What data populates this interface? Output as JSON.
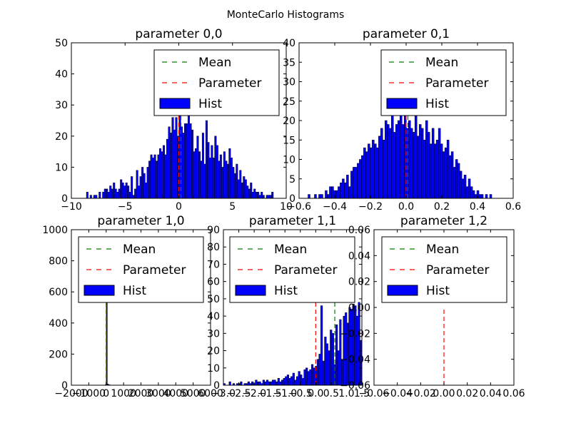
{
  "figure": {
    "suptitle": "MonteCarlo Histograms"
  },
  "legend_labels": [
    "Mean",
    "Parameter",
    "Hist"
  ],
  "colors": {
    "mean": "#008000",
    "parameter": "#ff0000",
    "hist_fill": "#0000ff",
    "hist_edge": "#000000"
  },
  "chart_data": [
    {
      "type": "bar",
      "title": "parameter 0,0",
      "xlim": [
        -10,
        10
      ],
      "ylim": [
        0,
        50
      ],
      "xticks": [
        "−10",
        "−5",
        "0",
        "5",
        "10"
      ],
      "xtick_values": [
        -10,
        -5,
        0,
        5,
        10
      ],
      "yticks": [
        "0",
        "10",
        "20",
        "30",
        "40",
        "50"
      ],
      "ytick_values": [
        0,
        10,
        20,
        30,
        40,
        50
      ],
      "legend_position": "upper right",
      "mean": 0.2,
      "parameter": 0.0,
      "bins_range": [
        -8.6,
        8.8
      ],
      "counts": [
        2,
        0,
        1,
        0,
        1,
        1,
        0,
        2,
        0,
        2,
        3,
        3,
        2,
        4,
        3,
        5,
        3,
        2,
        3,
        6,
        5,
        4,
        5,
        4,
        2,
        7,
        1,
        3,
        9,
        4,
        7,
        10,
        8,
        5,
        10,
        12,
        14,
        13,
        14,
        12,
        14,
        16,
        15,
        17,
        14,
        19,
        23,
        21,
        26,
        22,
        26,
        20,
        27,
        23,
        21,
        24,
        24,
        27,
        24,
        22,
        15,
        16,
        20,
        15,
        12,
        21,
        11,
        25,
        18,
        13,
        17,
        13,
        20,
        17,
        12,
        14,
        10,
        15,
        12,
        11,
        16,
        13,
        10,
        8,
        11,
        6,
        9,
        5,
        7,
        6,
        4,
        3,
        5,
        2,
        3,
        2,
        2,
        1,
        2,
        1,
        0,
        1,
        1,
        1,
        2
      ]
    },
    {
      "type": "bar",
      "title": "parameter 0,1",
      "xlim": [
        -0.6,
        0.6
      ],
      "ylim": [
        0,
        40
      ],
      "xticks": [
        "−0.6",
        "−0.4",
        "−0.2",
        "0.0",
        "0.2",
        "0.4",
        "0.6"
      ],
      "xtick_values": [
        -0.6,
        -0.4,
        -0.2,
        0.0,
        0.2,
        0.4,
        0.6
      ],
      "yticks": [
        "0",
        "5",
        "10",
        "15",
        "20",
        "25",
        "30",
        "35",
        "40"
      ],
      "ytick_values": [
        0,
        5,
        10,
        15,
        20,
        25,
        30,
        35,
        40
      ],
      "legend_position": "upper right",
      "mean": 0.01,
      "parameter": 0.0,
      "bins_range": [
        -0.55,
        0.48
      ],
      "counts": [
        1,
        0,
        0,
        1,
        0,
        1,
        1,
        0,
        2,
        1,
        3,
        3,
        2,
        2,
        3,
        4,
        5,
        4,
        6,
        3,
        7,
        8,
        8,
        9,
        10,
        11,
        13,
        12,
        14,
        13,
        15,
        14,
        13,
        16,
        18,
        15,
        20,
        19,
        18,
        24,
        17,
        19,
        20,
        22,
        19,
        23,
        18,
        20,
        18,
        17,
        22,
        16,
        19,
        18,
        15,
        20,
        17,
        14,
        18,
        14,
        15,
        18,
        14,
        12,
        13,
        15,
        11,
        12,
        8,
        10,
        9,
        7,
        5,
        6,
        3,
        5,
        3,
        2,
        1,
        2,
        1,
        1,
        0,
        1,
        0,
        1
      ]
    },
    {
      "type": "bar",
      "title": "parameter 1,0",
      "xlim": [
        -2000,
        6000
      ],
      "ylim": [
        0,
        1000
      ],
      "xticks": [
        "−2000",
        "−1000",
        "0",
        "1000",
        "2000",
        "3000",
        "4000",
        "5000",
        "6000"
      ],
      "xtick_values": [
        -2000,
        -1000,
        0,
        1000,
        2000,
        3000,
        4000,
        5000,
        6000
      ],
      "yticks": [
        "0",
        "200",
        "400",
        "600",
        "800",
        "1000"
      ],
      "ytick_values": [
        0,
        200,
        400,
        600,
        800,
        1000
      ],
      "legend_position": "upper right",
      "mean": 10,
      "parameter": 0,
      "bins_range": [
        -60,
        1200
      ],
      "counts": [
        3,
        555,
        8,
        3,
        2,
        1,
        1,
        0,
        1,
        1,
        0,
        1,
        0,
        0,
        1,
        0,
        0,
        0,
        0,
        1
      ]
    },
    {
      "type": "bar",
      "title": "parameter 1,1",
      "xlim": [
        -3.0,
        1.5
      ],
      "ylim": [
        0,
        90
      ],
      "xticks": [
        "−3.0",
        "−2.5",
        "−2.0",
        "−1.5",
        "−1.0",
        "−0.5",
        "0.0",
        "0.5",
        "1.0",
        "1.5"
      ],
      "xtick_values": [
        -3.0,
        -2.5,
        -2.0,
        -1.5,
        -1.0,
        -0.5,
        0.0,
        0.5,
        1.0,
        1.5
      ],
      "yticks": [
        "0",
        "10",
        "20",
        "30",
        "40",
        "50",
        "60",
        "70",
        "80",
        "90"
      ],
      "ytick_values": [
        0,
        10,
        20,
        30,
        40,
        50,
        60,
        70,
        80,
        90
      ],
      "legend_position": "upper right",
      "mean": 0.62,
      "parameter": 0.0,
      "bins_range": [
        -3.0,
        1.5
      ],
      "counts": [
        1,
        0,
        0,
        2,
        0,
        1,
        0,
        1,
        1,
        2,
        0,
        1,
        1,
        2,
        1,
        2,
        1,
        3,
        2,
        2,
        1,
        3,
        2,
        3,
        2,
        2,
        3,
        3,
        2,
        4,
        2,
        3,
        4,
        5,
        6,
        4,
        5,
        7,
        3,
        5,
        8,
        6,
        4,
        9,
        10,
        8,
        9,
        12,
        10,
        11,
        15,
        18,
        46,
        14,
        28,
        24,
        20,
        32,
        30,
        12,
        35,
        20,
        38,
        15,
        40,
        42,
        36,
        45,
        44,
        47,
        46,
        40,
        48,
        26
      ]
    },
    {
      "type": "line",
      "title": "parameter 1,2",
      "xlim": [
        -0.06,
        0.06
      ],
      "ylim": [
        -0.06,
        0.06
      ],
      "xticks": [
        "−0.06",
        "−0.04",
        "−0.02",
        "0.00",
        "0.02",
        "0.04",
        "0.06"
      ],
      "xtick_values": [
        -0.06,
        -0.04,
        -0.02,
        0.0,
        0.02,
        0.04,
        0.06
      ],
      "yticks": [
        "−0.06",
        "−0.04",
        "−0.02",
        "0.00",
        "0.02",
        "0.04",
        "0.06"
      ],
      "ytick_values": [
        -0.06,
        -0.04,
        -0.02,
        0.0,
        0.02,
        0.04,
        0.06
      ],
      "legend_position": "upper right",
      "mean": null,
      "parameter": 0.0,
      "bins_range": null,
      "counts": []
    }
  ]
}
